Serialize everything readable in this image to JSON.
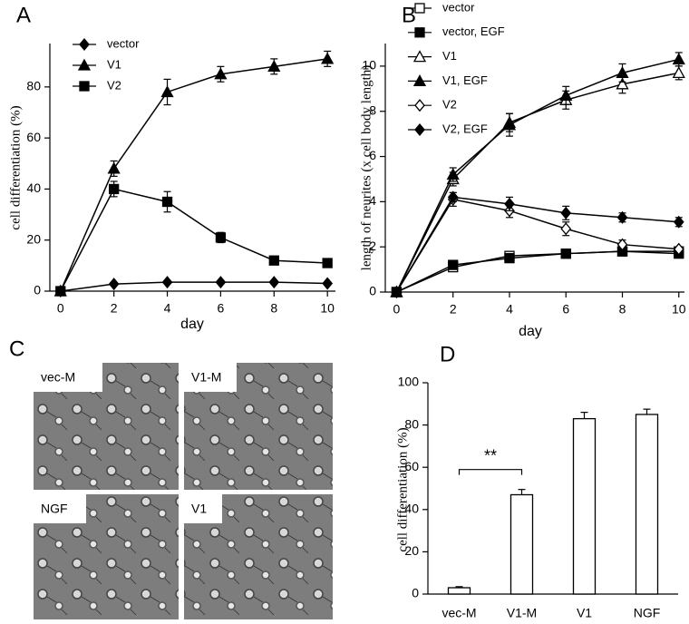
{
  "chart_data": [
    {
      "type": "line",
      "panel": "A",
      "xlabel": "day",
      "ylabel": "cell differentiation (%)",
      "x": [
        0,
        2,
        4,
        6,
        8,
        10
      ],
      "xlim": [
        -0.4,
        10.3
      ],
      "xticks": [
        0,
        2,
        4,
        6,
        8,
        10
      ],
      "ylim": [
        0,
        97
      ],
      "yticks": [
        0,
        20,
        40,
        60,
        80
      ],
      "legend": "upper left",
      "series": [
        {
          "name": "vector",
          "color": "#000000",
          "marker": "diamond",
          "filled": true,
          "values": [
            0,
            2.8,
            3.5,
            3.5,
            3.5,
            3
          ],
          "errors": [
            0,
            0.5,
            0.5,
            0.5,
            0.5,
            0.5
          ]
        },
        {
          "name": "V1",
          "color": "#000000",
          "marker": "triangle",
          "filled": true,
          "values": [
            0,
            48,
            78,
            85,
            88,
            91
          ],
          "errors": [
            0,
            3,
            5,
            3,
            3,
            3
          ]
        },
        {
          "name": "V2",
          "color": "#000000",
          "marker": "square",
          "filled": true,
          "values": [
            0,
            40,
            35,
            21,
            12,
            11
          ],
          "errors": [
            0,
            3,
            4,
            2,
            1,
            1
          ]
        }
      ]
    },
    {
      "type": "line",
      "panel": "B",
      "xlabel": "day",
      "ylabel": "length of neurites (x cell body length)",
      "x": [
        0,
        2,
        4,
        6,
        8,
        10
      ],
      "xlim": [
        -0.4,
        10.2
      ],
      "xticks": [
        0,
        2,
        4,
        6,
        8,
        10
      ],
      "ylim": [
        0,
        11
      ],
      "yticks": [
        0,
        2,
        4,
        6,
        8,
        10
      ],
      "legend": "upper left",
      "series": [
        {
          "name": "vector",
          "color": "#000000",
          "marker": "square",
          "filled": false,
          "values": [
            0,
            1.1,
            1.6,
            1.7,
            1.8,
            1.8
          ],
          "errors": [
            0,
            0.1,
            0.1,
            0.1,
            0.1,
            0.1
          ]
        },
        {
          "name": "vector, EGF",
          "color": "#000000",
          "marker": "square",
          "filled": true,
          "values": [
            0,
            1.2,
            1.5,
            1.7,
            1.8,
            1.7
          ],
          "errors": [
            0,
            0.1,
            0.1,
            0.1,
            0.1,
            0.1
          ]
        },
        {
          "name": "V1",
          "color": "#000000",
          "marker": "triangle",
          "filled": false,
          "values": [
            0,
            5.0,
            7.5,
            8.5,
            9.2,
            9.7
          ],
          "errors": [
            0,
            0.3,
            0.4,
            0.4,
            0.4,
            0.3
          ]
        },
        {
          "name": "V1, EGF",
          "color": "#000000",
          "marker": "triangle",
          "filled": true,
          "values": [
            0,
            5.2,
            7.4,
            8.7,
            9.7,
            10.3
          ],
          "errors": [
            0,
            0.3,
            0.5,
            0.4,
            0.4,
            0.3
          ]
        },
        {
          "name": "V2",
          "color": "#000000",
          "marker": "diamond",
          "filled": false,
          "values": [
            0,
            4.1,
            3.6,
            2.8,
            2.1,
            1.9
          ],
          "errors": [
            0,
            0.3,
            0.3,
            0.3,
            0.2,
            0.1
          ]
        },
        {
          "name": "V2, EGF",
          "color": "#000000",
          "marker": "diamond",
          "filled": true,
          "values": [
            0,
            4.2,
            3.9,
            3.5,
            3.3,
            3.1
          ],
          "errors": [
            0,
            0.2,
            0.3,
            0.3,
            0.2,
            0.2
          ]
        }
      ]
    },
    {
      "type": "bar",
      "panel": "D",
      "ylabel": "cell differentiation (%)",
      "categories": [
        "vec-M",
        "V1-M",
        "V1",
        "NGF"
      ],
      "values": [
        3,
        47,
        83,
        85
      ],
      "errors": [
        0.5,
        2.5,
        3,
        2.5
      ],
      "color": "#ffffff",
      "ylim": [
        0,
        100
      ],
      "yticks": [
        0,
        20,
        40,
        60,
        80,
        100
      ],
      "annotation": "**"
    }
  ],
  "images": {
    "panel": "C",
    "labels": [
      "vec-M",
      "V1-M",
      "NGF",
      "V1"
    ]
  }
}
